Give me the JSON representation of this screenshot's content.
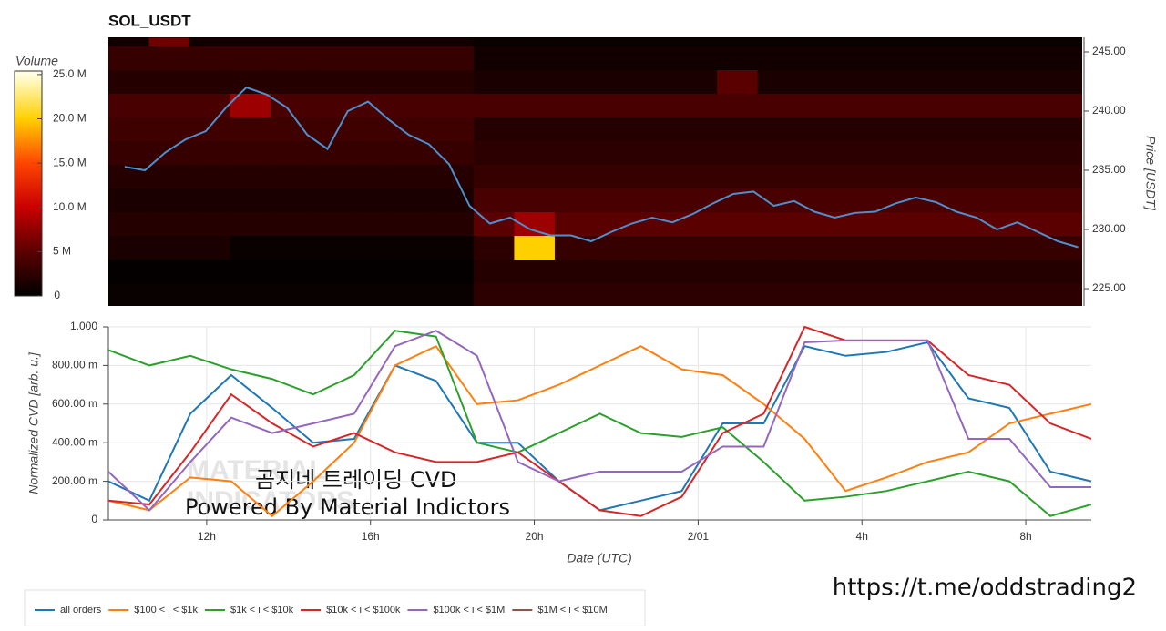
{
  "chart_data": [
    {
      "type": "heatmap",
      "title": "SOL_USDT",
      "xlim": [
        9.6,
        33.6
      ],
      "x_edges": [
        9.6,
        10.6,
        11.6,
        12.6,
        13.6,
        14.6,
        15.6,
        16.6,
        17.6,
        18.6,
        19.6,
        20.6,
        21.6,
        22.6,
        23.6,
        24.6,
        25.6,
        26.6,
        27.6,
        28.6,
        29.6,
        30.6,
        31.6,
        32.6,
        33.6
      ],
      "y_edges": [
        223.5,
        225.5,
        227.5,
        229.5,
        231.5,
        233.5,
        235.5,
        237.5,
        239.5,
        241.5,
        243.5,
        245.5,
        246.2
      ],
      "z": [
        [
          0.5,
          0.5,
          0.5,
          0.5,
          0.5,
          0.5,
          0.5,
          0.5,
          0.5,
          2.5,
          2.5,
          2.5,
          2.5,
          2.5,
          2.5,
          2.5,
          2.5,
          2.5,
          2.5,
          2.5,
          2.5,
          2.5,
          2.5,
          2.5
        ],
        [
          0.3,
          0.3,
          0.3,
          0.3,
          0.3,
          0.3,
          0.3,
          0.3,
          0.3,
          2,
          2,
          2,
          2,
          2,
          2,
          2,
          2,
          2,
          2,
          2,
          2,
          2,
          2,
          2
        ],
        [
          1.5,
          1.5,
          1.5,
          0.5,
          0.5,
          0.5,
          0.5,
          0.5,
          0.5,
          2.5,
          20,
          3,
          3,
          3,
          3,
          3,
          3,
          3,
          3,
          3,
          3,
          3,
          3,
          3
        ],
        [
          2,
          2,
          2,
          2,
          2,
          2,
          2,
          2,
          2,
          5,
          8,
          5,
          5,
          5,
          5,
          5,
          5,
          5,
          5,
          5,
          5,
          5,
          5,
          5
        ],
        [
          1.5,
          1.5,
          1.5,
          1.5,
          1.5,
          1.5,
          1.5,
          1.5,
          1.5,
          4,
          4,
          4,
          4,
          4,
          4,
          4,
          4,
          4,
          4,
          4,
          4,
          4,
          4,
          4
        ],
        [
          2,
          2,
          2,
          2,
          2,
          2,
          2,
          2,
          2,
          3,
          3,
          3,
          3,
          3,
          3,
          3,
          3,
          3,
          3,
          3,
          3,
          3,
          3,
          3
        ],
        [
          3,
          3,
          3,
          3,
          3,
          3,
          3,
          3,
          3,
          2.5,
          2.5,
          2.5,
          2.5,
          2.5,
          2.5,
          2.5,
          2.5,
          2.5,
          2.5,
          2.5,
          2.5,
          2.5,
          2.5,
          2.5
        ],
        [
          3.5,
          3.5,
          3.5,
          3.5,
          3.5,
          3.5,
          3.5,
          3.5,
          3.5,
          2,
          2,
          2,
          2,
          2,
          2,
          2,
          2,
          2,
          2,
          2,
          2,
          2,
          2,
          2
        ],
        [
          4,
          4,
          4,
          8,
          4,
          4,
          4,
          4,
          4,
          4,
          4,
          4,
          4,
          4,
          4,
          4,
          4,
          4,
          4,
          4,
          4,
          4,
          4,
          4
        ],
        [
          2,
          2,
          2,
          2,
          2,
          2,
          2,
          2,
          2,
          1.5,
          1.5,
          1.5,
          1.5,
          1.5,
          1.5,
          5,
          1.5,
          1.5,
          1.5,
          1.5,
          1.5,
          1.5,
          1.5,
          1.5
        ],
        [
          3,
          3,
          3,
          3,
          3,
          3,
          3,
          3,
          3,
          1,
          1,
          1,
          1,
          1,
          1,
          1,
          1,
          1,
          1,
          1,
          1,
          1,
          1,
          1
        ],
        [
          1,
          6,
          1,
          1,
          1,
          1,
          1,
          1,
          1,
          0.5,
          0.5,
          0.5,
          0.5,
          0.5,
          0.5,
          0.5,
          0.5,
          0.5,
          0.5,
          0.5,
          0.5,
          0.5,
          0.5,
          0.5
        ]
      ],
      "colorscale": [
        [
          0,
          "#000000"
        ],
        [
          5,
          "#5a0000"
        ],
        [
          10,
          "#c80000"
        ],
        [
          15,
          "#ff4500"
        ],
        [
          20,
          "#ffd000"
        ],
        [
          25,
          "#ffffe0"
        ]
      ],
      "clim": [
        0,
        25.4
      ],
      "colorbar_label": "Volume",
      "colorbar_ticks": [
        0,
        {
          "value": 5,
          "label": "5 M"
        },
        {
          "value": 10,
          "label": "10.0 M"
        },
        {
          "value": 15,
          "label": "15.0 M"
        },
        {
          "value": 20,
          "label": "20.0 M"
        },
        {
          "value": 25,
          "label": "25.0 M"
        }
      ],
      "ylabel": "Price [USDT]",
      "ylim": [
        223.54,
        246.23
      ],
      "yticks": [
        {
          "value": 225,
          "label": "225.00"
        },
        {
          "value": 230,
          "label": "230.00"
        },
        {
          "value": 235,
          "label": "235.00"
        },
        {
          "value": 240,
          "label": "240.00"
        },
        {
          "value": 245,
          "label": "245.00"
        }
      ],
      "price": {
        "color": "#4f8fcc",
        "x": [
          10,
          10.5,
          11,
          11.5,
          12,
          12.5,
          13,
          13.5,
          14,
          14.5,
          15,
          15.5,
          16,
          16.5,
          17,
          17.5,
          18,
          18.5,
          19,
          19.5,
          20,
          20.5,
          21,
          21.5,
          22,
          22.5,
          23,
          23.5,
          24,
          24.5,
          25,
          25.5,
          26,
          26.5,
          27,
          27.5,
          28,
          28.5,
          29,
          29.5,
          30,
          30.5,
          31,
          31.5,
          32,
          32.5,
          33,
          33.5
        ],
        "values": [
          235.3,
          235.0,
          236.5,
          237.6,
          238.3,
          240.3,
          242.0,
          241.4,
          240.3,
          238.0,
          236.8,
          240.0,
          240.8,
          239.3,
          238.0,
          237.2,
          235.5,
          232.0,
          230.5,
          231.0,
          230.0,
          229.5,
          229.5,
          229.0,
          229.8,
          230.5,
          231.0,
          230.6,
          231.3,
          232.2,
          233.0,
          233.2,
          232.0,
          232.4,
          231.5,
          231.0,
          231.4,
          231.5,
          232.2,
          232.7,
          232.3,
          231.5,
          231.0,
          230.0,
          230.6,
          229.8,
          229.0,
          228.5
        ]
      }
    },
    {
      "type": "line",
      "xlabel": "Date (UTC)",
      "ylabel": "Normalized CVD [arb. u.]",
      "xlim": [
        9.6,
        33.6
      ],
      "xticks": [
        {
          "value": 12,
          "label": "12h"
        },
        {
          "value": 16,
          "label": "16h"
        },
        {
          "value": 20,
          "label": "20h"
        },
        {
          "value": 24,
          "label": "2/01"
        },
        {
          "value": 28,
          "label": "4h"
        },
        {
          "value": 32,
          "label": "8h"
        }
      ],
      "ylim": [
        0,
        1
      ],
      "yticks": [
        0,
        {
          "value": 0.2,
          "label": "200.00 m"
        },
        {
          "value": 0.4,
          "label": "400.00 m"
        },
        {
          "value": 0.6,
          "label": "600.00 m"
        },
        {
          "value": 0.8,
          "label": "800.00 m"
        },
        {
          "value": 1,
          "label": "1.000"
        }
      ],
      "grid": true,
      "legend": "bottom-left",
      "x": [
        9.6,
        10.6,
        11.6,
        12.6,
        13.6,
        14.6,
        15.6,
        16.6,
        17.6,
        18.6,
        19.6,
        20.6,
        21.6,
        22.6,
        23.6,
        24.6,
        25.6,
        26.6,
        27.6,
        28.6,
        29.6,
        30.6,
        31.6,
        32.6,
        33.6
      ],
      "series": [
        {
          "name": "all orders",
          "color": "#1f77b4",
          "values": [
            0.2,
            0.1,
            0.55,
            0.75,
            0.58,
            0.4,
            0.42,
            0.8,
            0.72,
            0.4,
            0.4,
            0.2,
            0.05,
            0.1,
            0.15,
            0.5,
            0.5,
            0.9,
            0.85,
            0.87,
            0.92,
            0.63,
            0.58,
            0.25,
            0.2
          ]
        },
        {
          "name": "$100 < i < $1k",
          "color": "#ff7f0e",
          "values": [
            0.1,
            0.05,
            0.22,
            0.2,
            0.02,
            0.2,
            0.4,
            0.8,
            0.9,
            0.6,
            0.62,
            0.7,
            0.8,
            0.9,
            0.78,
            0.75,
            0.6,
            0.42,
            0.15,
            0.22,
            0.3,
            0.35,
            0.5,
            0.55,
            0.6
          ]
        },
        {
          "name": "$1k < i < $10k",
          "color": "#2ca02c",
          "values": [
            0.88,
            0.8,
            0.85,
            0.78,
            0.73,
            0.65,
            0.75,
            0.98,
            0.95,
            0.4,
            0.35,
            0.45,
            0.55,
            0.45,
            0.43,
            0.48,
            0.3,
            0.1,
            0.12,
            0.15,
            0.2,
            0.25,
            0.2,
            0.02,
            0.08
          ]
        },
        {
          "name": "$10k < i < $100k",
          "color": "#d62728",
          "values": [
            0.1,
            0.08,
            0.35,
            0.65,
            0.5,
            0.38,
            0.45,
            0.35,
            0.3,
            0.3,
            0.35,
            0.2,
            0.05,
            0.02,
            0.12,
            0.45,
            0.55,
            1.0,
            0.93,
            0.93,
            0.93,
            0.75,
            0.7,
            0.5,
            0.42
          ]
        },
        {
          "name": "$100k < i < $1M",
          "color": "#9467bd",
          "values": [
            0.25,
            0.05,
            0.3,
            0.53,
            0.45,
            0.5,
            0.55,
            0.9,
            0.98,
            0.85,
            0.3,
            0.2,
            0.25,
            0.25,
            0.25,
            0.38,
            0.38,
            0.92,
            0.93,
            0.93,
            0.93,
            0.42,
            0.42,
            0.17,
            0.17
          ]
        },
        {
          "name": "$1M < i < $10M",
          "color": "#8c564b",
          "values": [
            null,
            null,
            null,
            null,
            null,
            null,
            null,
            null,
            null,
            null,
            null,
            null,
            null,
            null,
            null,
            null,
            null,
            null,
            null,
            null,
            null,
            null,
            null,
            null,
            null
          ]
        }
      ],
      "annotations": [
        "MATERIAL",
        "INDICATORS",
        "곰지네 트레이딩 CVD",
        "Powered By Material Indictors",
        "https://t.me/oddstrading2"
      ]
    }
  ]
}
